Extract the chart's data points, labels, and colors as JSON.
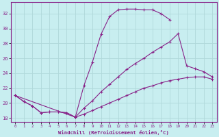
{
  "xlabel": "Windchill (Refroidissement éolien,°C)",
  "bg_color": "#c8eef0",
  "grid_color": "#b0d8da",
  "line_color": "#882288",
  "xlim": [
    -0.5,
    23.5
  ],
  "ylim": [
    17.5,
    33.5
  ],
  "xticks": [
    0,
    1,
    2,
    3,
    4,
    5,
    6,
    7,
    8,
    9,
    10,
    11,
    12,
    13,
    14,
    15,
    16,
    17,
    18,
    19,
    20,
    21,
    22,
    23
  ],
  "yticks": [
    18,
    20,
    22,
    24,
    26,
    28,
    30,
    32
  ],
  "line1_x": [
    0,
    1,
    2,
    3,
    4,
    5,
    6,
    7,
    8,
    9,
    10,
    11,
    12,
    13,
    14,
    15,
    16,
    17,
    18
  ],
  "line1_y": [
    21.0,
    20.2,
    19.6,
    18.7,
    18.8,
    18.8,
    18.7,
    18.1,
    22.3,
    25.5,
    29.2,
    31.6,
    32.5,
    32.6,
    32.6,
    32.5,
    32.5,
    32.0,
    31.2
  ],
  "line2_x": [
    0,
    1,
    2,
    3,
    4,
    5,
    6,
    7,
    8,
    9,
    10,
    11,
    12,
    13,
    14,
    15,
    16,
    17,
    18,
    19,
    20,
    21,
    22,
    23
  ],
  "line2_y": [
    21.0,
    20.2,
    19.6,
    18.7,
    18.8,
    18.8,
    18.7,
    18.1,
    19.3,
    20.3,
    21.5,
    22.5,
    23.5,
    24.5,
    25.3,
    26.0,
    26.8,
    27.5,
    28.2,
    29.3,
    25.0,
    24.6,
    24.2,
    23.5
  ],
  "line3_x": [
    0,
    7,
    8,
    9,
    10,
    11,
    12,
    13,
    14,
    15,
    16,
    17,
    18,
    19,
    20,
    21,
    22,
    23
  ],
  "line3_y": [
    21.0,
    18.1,
    18.5,
    19.0,
    19.5,
    20.0,
    20.5,
    21.0,
    21.5,
    22.0,
    22.3,
    22.7,
    23.0,
    23.2,
    23.4,
    23.5,
    23.5,
    23.2
  ]
}
